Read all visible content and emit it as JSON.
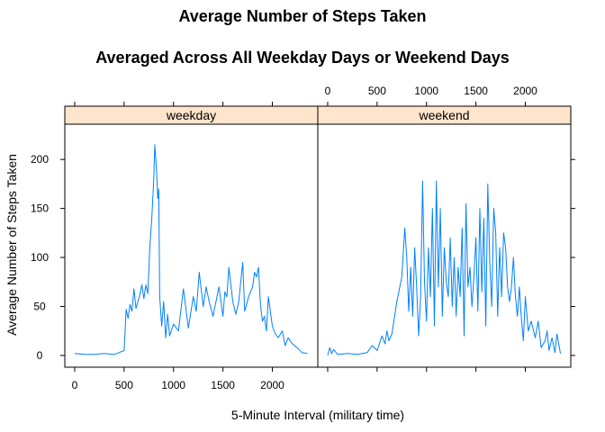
{
  "chart_data": {
    "type": "line",
    "title": "Average Number of Steps Taken",
    "subtitle": "Averaged Across All Weekday Days or Weekend Days",
    "xlabel": "5-Minute Interval (military time)",
    "ylabel": "Average Number of Steps Taken",
    "xlim": [
      -100,
      2460
    ],
    "ylim": [
      -12,
      236
    ],
    "x_ticks": [
      0,
      500,
      1000,
      1500,
      2000
    ],
    "y_ticks": [
      0,
      50,
      100,
      150,
      200
    ],
    "layout": "two side-by-side panels with strip labels on top",
    "strip_color": "#ffe5cc",
    "line_color": "#0080ff",
    "panels": [
      {
        "strip_label": "weekday",
        "series": [
          {
            "x": [
              0,
              100,
              200,
              300,
              400,
              500,
              520,
              540,
              560,
              580,
              600,
              620,
              640,
              660,
              680,
              700,
              720,
              740,
              760,
              780,
              800,
              810,
              820,
              830,
              840,
              850,
              860,
              880,
              900,
              920,
              940,
              960,
              1000,
              1050,
              1100,
              1150,
              1200,
              1230,
              1260,
              1300,
              1330,
              1360,
              1400,
              1430,
              1460,
              1500,
              1520,
              1540,
              1560,
              1600,
              1630,
              1660,
              1700,
              1720,
              1760,
              1800,
              1820,
              1840,
              1860,
              1880,
              1900,
              1920,
              1940,
              1960,
              2000,
              2030,
              2060,
              2100,
              2130,
              2160,
              2200,
              2250,
              2300,
              2355
            ],
            "y": [
              2,
              1,
              1,
              2,
              1,
              5,
              47,
              38,
              52,
              45,
              68,
              48,
              55,
              62,
              72,
              58,
              72,
              63,
              110,
              140,
              180,
              215,
              200,
              185,
              160,
              170,
              60,
              30,
              55,
              18,
              42,
              20,
              32,
              25,
              68,
              28,
              60,
              45,
              85,
              50,
              70,
              55,
              40,
              55,
              70,
              40,
              65,
              60,
              90,
              55,
              42,
              55,
              95,
              45,
              60,
              70,
              85,
              80,
              90,
              52,
              35,
              40,
              25,
              60,
              30,
              22,
              18,
              25,
              10,
              18,
              12,
              8,
              3,
              2
            ]
          }
        ]
      },
      {
        "strip_label": "weekend",
        "series": [
          {
            "x": [
              0,
              20,
              40,
              60,
              100,
              200,
              300,
              400,
              450,
              500,
              550,
              580,
              600,
              620,
              650,
              700,
              750,
              780,
              800,
              820,
              840,
              860,
              880,
              900,
              920,
              940,
              960,
              980,
              1000,
              1020,
              1040,
              1060,
              1080,
              1100,
              1120,
              1140,
              1160,
              1180,
              1200,
              1220,
              1240,
              1260,
              1280,
              1300,
              1320,
              1340,
              1360,
              1380,
              1400,
              1420,
              1440,
              1460,
              1480,
              1500,
              1520,
              1540,
              1560,
              1580,
              1600,
              1620,
              1640,
              1660,
              1680,
              1700,
              1720,
              1740,
              1760,
              1780,
              1800,
              1820,
              1840,
              1860,
              1880,
              1900,
              1920,
              1940,
              1960,
              1980,
              2000,
              2030,
              2060,
              2100,
              2130,
              2160,
              2200,
              2220,
              2240,
              2270,
              2300,
              2320,
              2355
            ],
            "y": [
              0,
              8,
              2,
              6,
              1,
              2,
              1,
              3,
              10,
              5,
              20,
              12,
              25,
              15,
              22,
              55,
              80,
              130,
              100,
              45,
              90,
              40,
              110,
              70,
              20,
              60,
              178,
              75,
              35,
              110,
              60,
              150,
              30,
              178,
              70,
              150,
              40,
              110,
              75,
              60,
              120,
              50,
              100,
              40,
              90,
              60,
              130,
              20,
              155,
              70,
              90,
              50,
              80,
              120,
              45,
              150,
              65,
              140,
              30,
              175,
              95,
              50,
              150,
              125,
              40,
              110,
              60,
              125,
              110,
              70,
              55,
              70,
              100,
              60,
              40,
              70,
              38,
              15,
              60,
              25,
              35,
              18,
              35,
              8,
              15,
              25,
              5,
              18,
              3,
              22,
              2
            ]
          }
        ]
      }
    ]
  }
}
